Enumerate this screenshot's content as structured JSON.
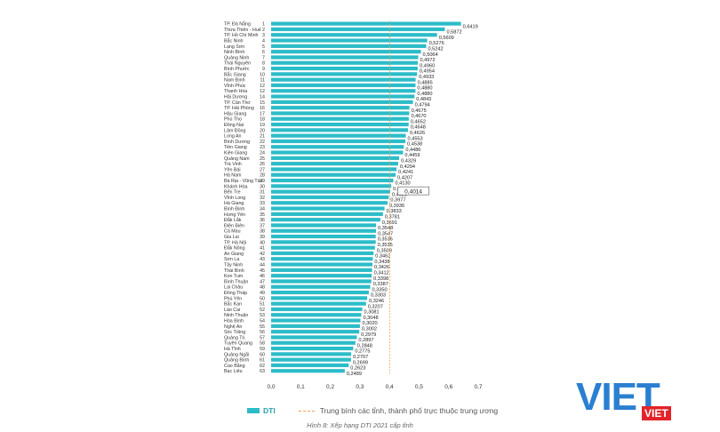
{
  "chart_data": {
    "type": "bar",
    "orientation": "horizontal",
    "categories": [
      "TP. Đà Nẵng",
      "Thừa Thiên - Huế",
      "TP. Hồ Chí Minh",
      "Bắc Ninh",
      "Lạng Sơn",
      "Ninh Bình",
      "Quảng Ninh",
      "Thái Nguyên",
      "Bình Phước",
      "Bắc Giang",
      "Nam Định",
      "Vĩnh Phúc",
      "Thanh Hóa",
      "Hải Dương",
      "TP. Cần Thơ",
      "TP. Hải Phòng",
      "Hậu Giang",
      "Phú Thọ",
      "Đồng Nai",
      "Lâm Đồng",
      "Long An",
      "Bình Dương",
      "Tiền Giang",
      "Kiên Giang",
      "Quảng Nam",
      "Trà Vinh",
      "Yên Bái",
      "Hà Nam",
      "Bà Rịa - Vũng Tàu",
      "Khánh Hòa",
      "Bến Tre",
      "Vĩnh Long",
      "Hà Giang",
      "Bình Định",
      "Hưng Yên",
      "Đắk Lắk",
      "Điện Biên",
      "Cà Mau",
      "Gia Lai",
      "TP. Hà Nội",
      "Đắk Nông",
      "An Giang",
      "Sơn La",
      "Tây Ninh",
      "Thái Bình",
      "Kon Tum",
      "Bình Thuận",
      "Lai Châu",
      "Đồng Tháp",
      "Phú Yên",
      "Bắc Kạn",
      "Lào Cai",
      "Ninh Thuận",
      "Hòa Bình",
      "Nghệ An",
      "Sóc Trăng",
      "Quảng Trị",
      "Tuyên Quang",
      "Hà Tĩnh",
      "Quảng Ngãi",
      "Quảng Bình",
      "Cao Bằng",
      "Bạc Liêu"
    ],
    "ranks": [
      "1",
      "2",
      "3",
      "4",
      "5",
      "6",
      "7",
      "8",
      "9",
      "10",
      "11",
      "12",
      "12",
      "14",
      "15",
      "16",
      "17",
      "18",
      "19",
      "20",
      "21",
      "22",
      "23",
      "24",
      "25",
      "26",
      "27",
      "28",
      "29",
      "30",
      "31",
      "32",
      "33",
      "34",
      "35",
      "36",
      "37",
      "38",
      "39",
      "40",
      "41",
      "42",
      "43",
      "44",
      "45",
      "46",
      "47",
      "48",
      "49",
      "50",
      "51",
      "52",
      "53",
      "54",
      "55",
      "56",
      "57",
      "58",
      "59",
      "60",
      "61",
      "62",
      "63"
    ],
    "values": [
      0.6419,
      0.5872,
      0.5609,
      0.5276,
      0.5242,
      0.5064,
      0.4972,
      0.496,
      0.4954,
      0.4933,
      0.4885,
      0.488,
      0.488,
      0.4843,
      0.4794,
      0.4675,
      0.467,
      0.4652,
      0.4648,
      0.4626,
      0.4553,
      0.4538,
      0.4486,
      0.4459,
      0.4329,
      0.4294,
      0.4241,
      0.4207,
      0.413,
      0.4061,
      0.4021,
      0.3977,
      0.3936,
      0.3833,
      0.3781,
      0.3691,
      0.3548,
      0.3547,
      0.3536,
      0.3535,
      0.3509,
      0.3462,
      0.3438,
      0.3426,
      0.3412,
      0.3398,
      0.3387,
      0.335,
      0.3303,
      0.3246,
      0.3207,
      0.3081,
      0.3048,
      0.302,
      0.3002,
      0.2979,
      0.2897,
      0.2848,
      0.2775,
      0.2707,
      0.2699,
      0.2623,
      0.2489
    ],
    "value_labels": [
      "0,6419",
      "0,5872",
      "0,5609",
      "0,5276",
      "0,5242",
      "0,5064",
      "0,4972",
      "0,4960",
      "0,4954",
      "0,4933",
      "0,4885",
      "0,4880",
      "0,4880",
      "0,4843",
      "0,4794",
      "0,4675",
      "0,4670",
      "0,4652",
      "0,4648",
      "0,4626",
      "0,4553",
      "0,4538",
      "0,4486",
      "0,4459",
      "0,4329",
      "0,4294",
      "0,4241",
      "0,4207",
      "0,4130",
      "0,4061",
      "0,4021",
      "0,3977",
      "0,3936",
      "0,3833",
      "0,3781",
      "0,3691",
      "0,3548",
      "0,3547",
      "0,3536",
      "0,3535",
      "0,3509",
      "0,3462",
      "0,3438",
      "0,3426",
      "0,3412",
      "0,3398",
      "0,3387",
      "0,3350",
      "0,3303",
      "0,3246",
      "0,3207",
      "0,3081",
      "0,3048",
      "0,3020",
      "0,3002",
      "0,2979",
      "0,2897",
      "0,2848",
      "0,2775",
      "0,2707",
      "0,2699",
      "0,2623",
      "0,2489"
    ],
    "average": 0.4014,
    "average_label": "0,4014",
    "xlim": [
      0,
      0.7
    ],
    "xticks": [
      "0,0",
      "0,1",
      "0,2",
      "0,3",
      "0,4",
      "0,5",
      "0,6",
      "0,7"
    ],
    "grid": false,
    "bar_color": "#2cbcc8",
    "average_line_color": "#f0a050",
    "series": [
      {
        "name": "DTI"
      }
    ],
    "legend_avg_label": "Trung bình các tỉnh, thành phố trực thuộc trung ương",
    "legend_position": "bottom"
  },
  "caption": "Hình 8: Xếp hạng DTI 2021 cấp tỉnh",
  "logo": "VIET"
}
